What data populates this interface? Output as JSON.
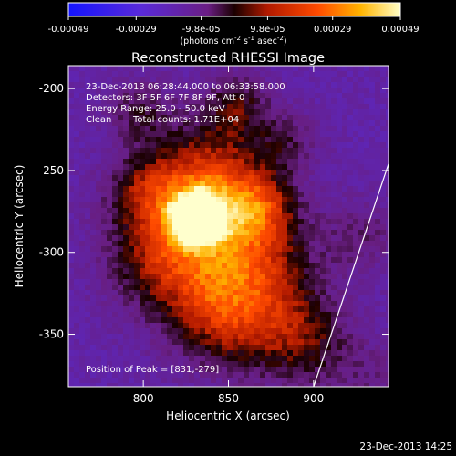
{
  "colorbar": {
    "ticks": [
      "-0.00049",
      "-0.00029",
      "-9.8e-05",
      "9.8e-05",
      "0.00029",
      "0.00049"
    ],
    "tick_values": [
      -0.00049,
      -0.00029,
      -9.8e-05,
      9.8e-05,
      0.00029,
      0.00049
    ],
    "range": [
      -0.00049,
      0.00049
    ],
    "units_main": "(photons cm",
    "units_sup1": "-2",
    "units_mid": " s",
    "units_sup2": "-1",
    "units_end": " asec",
    "units_sup3": "-2",
    "units_close": ")"
  },
  "title": "Reconstructed RHESSI Image",
  "annotations": {
    "time_range": "23-Dec-2013 06:28:44.000 to 06:33:58.000",
    "detectors": "Detectors: 3F 5F 6F 7F 8F 9F, Att 0",
    "energy": "Energy Range: 25.0 - 50.0 keV",
    "method": "Clean",
    "counts": "Total counts: 1.71E+04",
    "peak": "Position of Peak = [831,-279]"
  },
  "footer_timestamp": "23-Dec-2013 14:25",
  "colors": {
    "background": "#000000",
    "foreground": "#ffffff",
    "limb_line": "#ffffff"
  },
  "chart_data": {
    "type": "heatmap",
    "title": "Reconstructed RHESSI Image",
    "xlabel": "Heliocentric X (arcsec)",
    "ylabel": "Heliocentric Y (arcsec)",
    "xlim": [
      756,
      944
    ],
    "ylim": [
      -382,
      -186
    ],
    "x_ticks": [
      800,
      850,
      900
    ],
    "y_ticks": [
      -200,
      -250,
      -300,
      -350
    ],
    "colormap": "blue-purple-red-orange-yellow-white (diverging)",
    "peak": {
      "x": 831,
      "y": -279
    },
    "limb": {
      "points": [
        [
          900,
          -382
        ],
        [
          944,
          -246
        ]
      ]
    },
    "brightness_centers": [
      {
        "x": 831,
        "y": -279,
        "sigma": 10,
        "level": 1.0
      },
      {
        "x": 838,
        "y": -256,
        "sigma": 24,
        "level": 0.55
      },
      {
        "x": 812,
        "y": -302,
        "sigma": 24,
        "level": 0.45
      },
      {
        "x": 858,
        "y": -296,
        "sigma": 26,
        "level": 0.45
      },
      {
        "x": 842,
        "y": -338,
        "sigma": 22,
        "level": 0.3
      },
      {
        "x": 872,
        "y": -338,
        "sigma": 26,
        "level": 0.35
      },
      {
        "x": 898,
        "y": -356,
        "sigma": 18,
        "level": 0.22
      },
      {
        "x": 868,
        "y": -272,
        "sigma": 14,
        "level": 0.3
      },
      {
        "x": 800,
        "y": -262,
        "sigma": 16,
        "level": 0.3
      },
      {
        "x": 798,
        "y": -214,
        "sigma": 14,
        "level": 0.25
      },
      {
        "x": 855,
        "y": -210,
        "sigma": 14,
        "level": 0.3
      },
      {
        "x": 885,
        "y": -232,
        "sigma": 13,
        "level": 0.2
      },
      {
        "x": 930,
        "y": -290,
        "sigma": 16,
        "level": 0.18
      },
      {
        "x": 935,
        "y": -380,
        "sigma": 18,
        "level": 0.15
      }
    ],
    "background_level": -0.55
  }
}
